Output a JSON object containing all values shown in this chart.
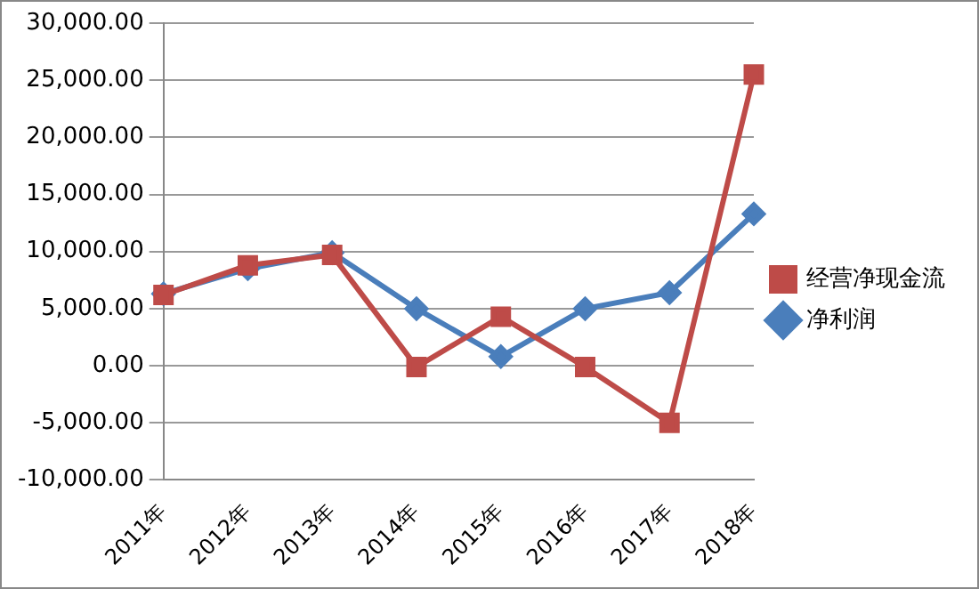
{
  "chart_data": {
    "type": "line",
    "categories": [
      "2011年",
      "2012年",
      "2013年",
      "2014年",
      "2015年",
      "2016年",
      "2017年",
      "2018年"
    ],
    "series": [
      {
        "name": "净利润",
        "color": "#4a7ebb",
        "marker": "diamond",
        "values": [
          6300,
          8500,
          9900,
          5000,
          800,
          5000,
          6400,
          13300
        ]
      },
      {
        "name": "经营净现金流",
        "color": "#be4b48",
        "marker": "square",
        "values": [
          6200,
          8800,
          9700,
          -100,
          4300,
          -100,
          -5000,
          25500
        ]
      }
    ],
    "ylim": [
      -10000,
      30000
    ],
    "yticks": [
      {
        "value": -10000,
        "label": "-10,000.00"
      },
      {
        "value": -5000,
        "label": "-5,000.00"
      },
      {
        "value": 0,
        "label": "0.00"
      },
      {
        "value": 5000,
        "label": "5,000.00"
      },
      {
        "value": 10000,
        "label": "10,000.00"
      },
      {
        "value": 15000,
        "label": "15,000.00"
      },
      {
        "value": 20000,
        "label": "20,000.00"
      },
      {
        "value": 25000,
        "label": "25,000.00"
      },
      {
        "value": 30000,
        "label": "30,000.00"
      }
    ],
    "grid": "y",
    "legend": "right"
  }
}
